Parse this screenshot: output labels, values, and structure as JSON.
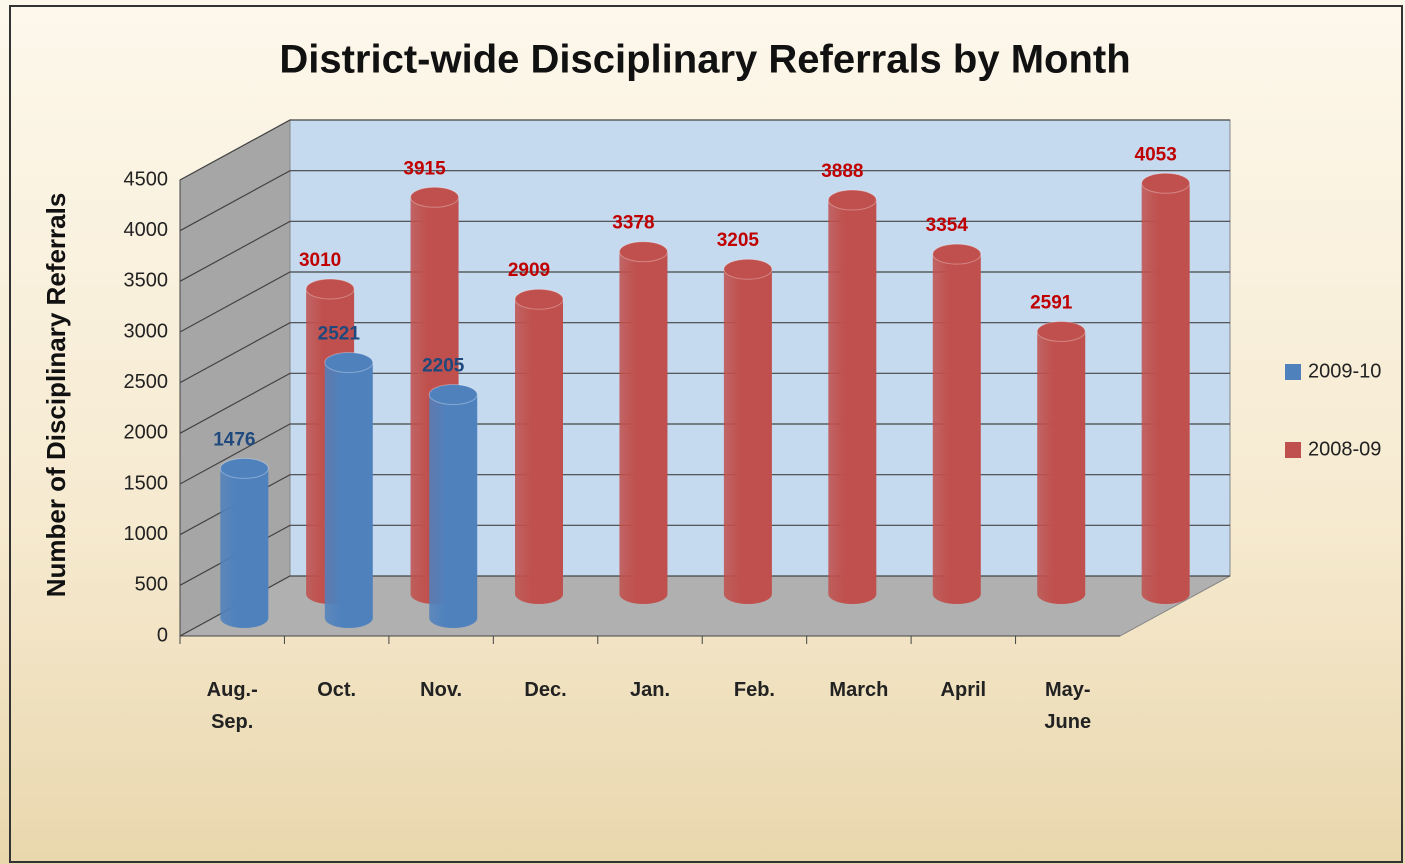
{
  "chart_data": {
    "type": "bar3d",
    "title": "District-wide Disciplinary Referrals by Month",
    "y_label": "Number of Disciplinary Referrals",
    "categories": [
      "Aug.-Sep.",
      "Oct.",
      "Nov.",
      "Dec.",
      "Jan.",
      "Feb.",
      "March",
      "April",
      "May-June"
    ],
    "series": [
      {
        "name": "2009-10",
        "color": "#4f81bd",
        "values": [
          1476,
          2521,
          2205,
          null,
          null,
          null,
          null,
          null,
          null
        ]
      },
      {
        "name": "2008-09",
        "color": "#c0504d",
        "values": [
          3010,
          3915,
          2909,
          3378,
          3205,
          3888,
          3354,
          2591,
          4053
        ]
      }
    ],
    "ylim": [
      0,
      4500
    ],
    "yticks": [
      0,
      500,
      1000,
      1500,
      2000,
      2500,
      3000,
      3500,
      4000,
      4500
    ],
    "grid": true,
    "legend": "right"
  }
}
